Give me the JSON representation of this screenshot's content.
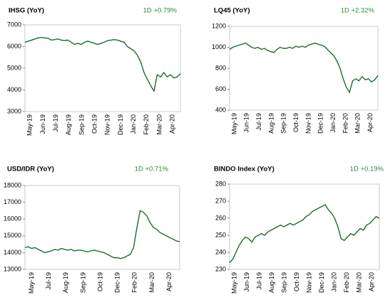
{
  "chart_data": [
    {
      "type": "line",
      "title": "IHSG (YoY)",
      "change": "1D +0.79%",
      "color": "#1f6b2c",
      "xtick_labels": [
        "May-19",
        "Jun-19",
        "Jul-19",
        "Aug-19",
        "Sep-19",
        "Oct-19",
        "Nov-19",
        "Dec-19",
        "Jan-20",
        "Feb-20",
        "Mar-20",
        "Apr-20"
      ],
      "ylim": [
        3000,
        7000
      ],
      "yticks": [
        3000,
        4000,
        5000,
        6000,
        7000
      ],
      "values": [
        6200,
        6250,
        6300,
        6350,
        6400,
        6420,
        6400,
        6380,
        6300,
        6320,
        6350,
        6300,
        6280,
        6300,
        6200,
        6100,
        6150,
        6100,
        6200,
        6250,
        6200,
        6150,
        6100,
        6150,
        6200,
        6280,
        6300,
        6320,
        6300,
        6250,
        6200,
        6000,
        5900,
        5800,
        5600,
        5300,
        4800,
        4500,
        4200,
        3950,
        4700,
        4600,
        4800,
        4600,
        4700,
        4550,
        4600,
        4750
      ]
    },
    {
      "type": "line",
      "title": "LQ45 (YoY)",
      "change": "1D +2.32%",
      "color": "#1f6b2c",
      "xtick_labels": [
        "May-19",
        "Jun-19",
        "Jul-19",
        "Aug-19",
        "Sep-19",
        "Oct-19",
        "Nov-19",
        "Dec-19",
        "Jan-20",
        "Feb-20",
        "Mar-20",
        "Apr-20"
      ],
      "ylim": [
        400,
        1200
      ],
      "yticks": [
        400,
        600,
        800,
        1000,
        1200
      ],
      "values": [
        980,
        1000,
        1010,
        1020,
        1030,
        1040,
        1020,
        1000,
        990,
        1000,
        980,
        990,
        970,
        960,
        950,
        980,
        1000,
        990,
        990,
        1000,
        990,
        1010,
        1000,
        1010,
        1000,
        1020,
        1030,
        1040,
        1030,
        1020,
        1010,
        980,
        950,
        920,
        870,
        800,
        700,
        620,
        570,
        680,
        700,
        680,
        720,
        690,
        700,
        670,
        690,
        730
      ]
    },
    {
      "type": "line",
      "title": "USD/IDR  (YoY)",
      "change": "1D +0.71%",
      "color": "#1f6b2c",
      "xtick_labels": [
        "May-19",
        "Jul-19",
        "Aug-19",
        "Sep-19",
        "Oct-19",
        "Dec-19",
        "Feb-20",
        "Mar-20",
        "Apr-20"
      ],
      "ylim": [
        13000,
        18000
      ],
      "yticks": [
        13000,
        14000,
        15000,
        16000,
        17000,
        18000
      ],
      "values": [
        14300,
        14350,
        14250,
        14300,
        14200,
        14100,
        14000,
        14050,
        14100,
        14200,
        14150,
        14250,
        14200,
        14150,
        14200,
        14100,
        14150,
        14150,
        14100,
        14050,
        14100,
        14150,
        14100,
        14050,
        14000,
        13900,
        13800,
        13700,
        13700,
        13650,
        13700,
        13800,
        13900,
        14300,
        15500,
        16500,
        16400,
        16200,
        15800,
        15500,
        15400,
        15200,
        15100,
        15000,
        14900,
        14800,
        14700,
        14650
      ]
    },
    {
      "type": "line",
      "title": "BINDO Index (YoY)",
      "change": "1D +0.19%",
      "color": "#1f6b2c",
      "xtick_labels": [
        "May-19",
        "Jun-19",
        "Jul-19",
        "Aug-19",
        "Sep-19",
        "Oct-19",
        "Nov-19",
        "Dec-19",
        "Jan-20",
        "Feb-20",
        "Mar-20",
        "Apr-20"
      ],
      "ylim": [
        230,
        280
      ],
      "yticks": [
        230,
        240,
        250,
        260,
        270,
        280
      ],
      "values": [
        234,
        236,
        240,
        244,
        247,
        249,
        248,
        246,
        249,
        250,
        251,
        250,
        252,
        253,
        254,
        255,
        256,
        255,
        256,
        257,
        256,
        257,
        258,
        259,
        261,
        262,
        264,
        265,
        266,
        267,
        268,
        265,
        263,
        260,
        255,
        248,
        247,
        249,
        251,
        250,
        252,
        254,
        253,
        256,
        257,
        259,
        261,
        260
      ]
    }
  ]
}
